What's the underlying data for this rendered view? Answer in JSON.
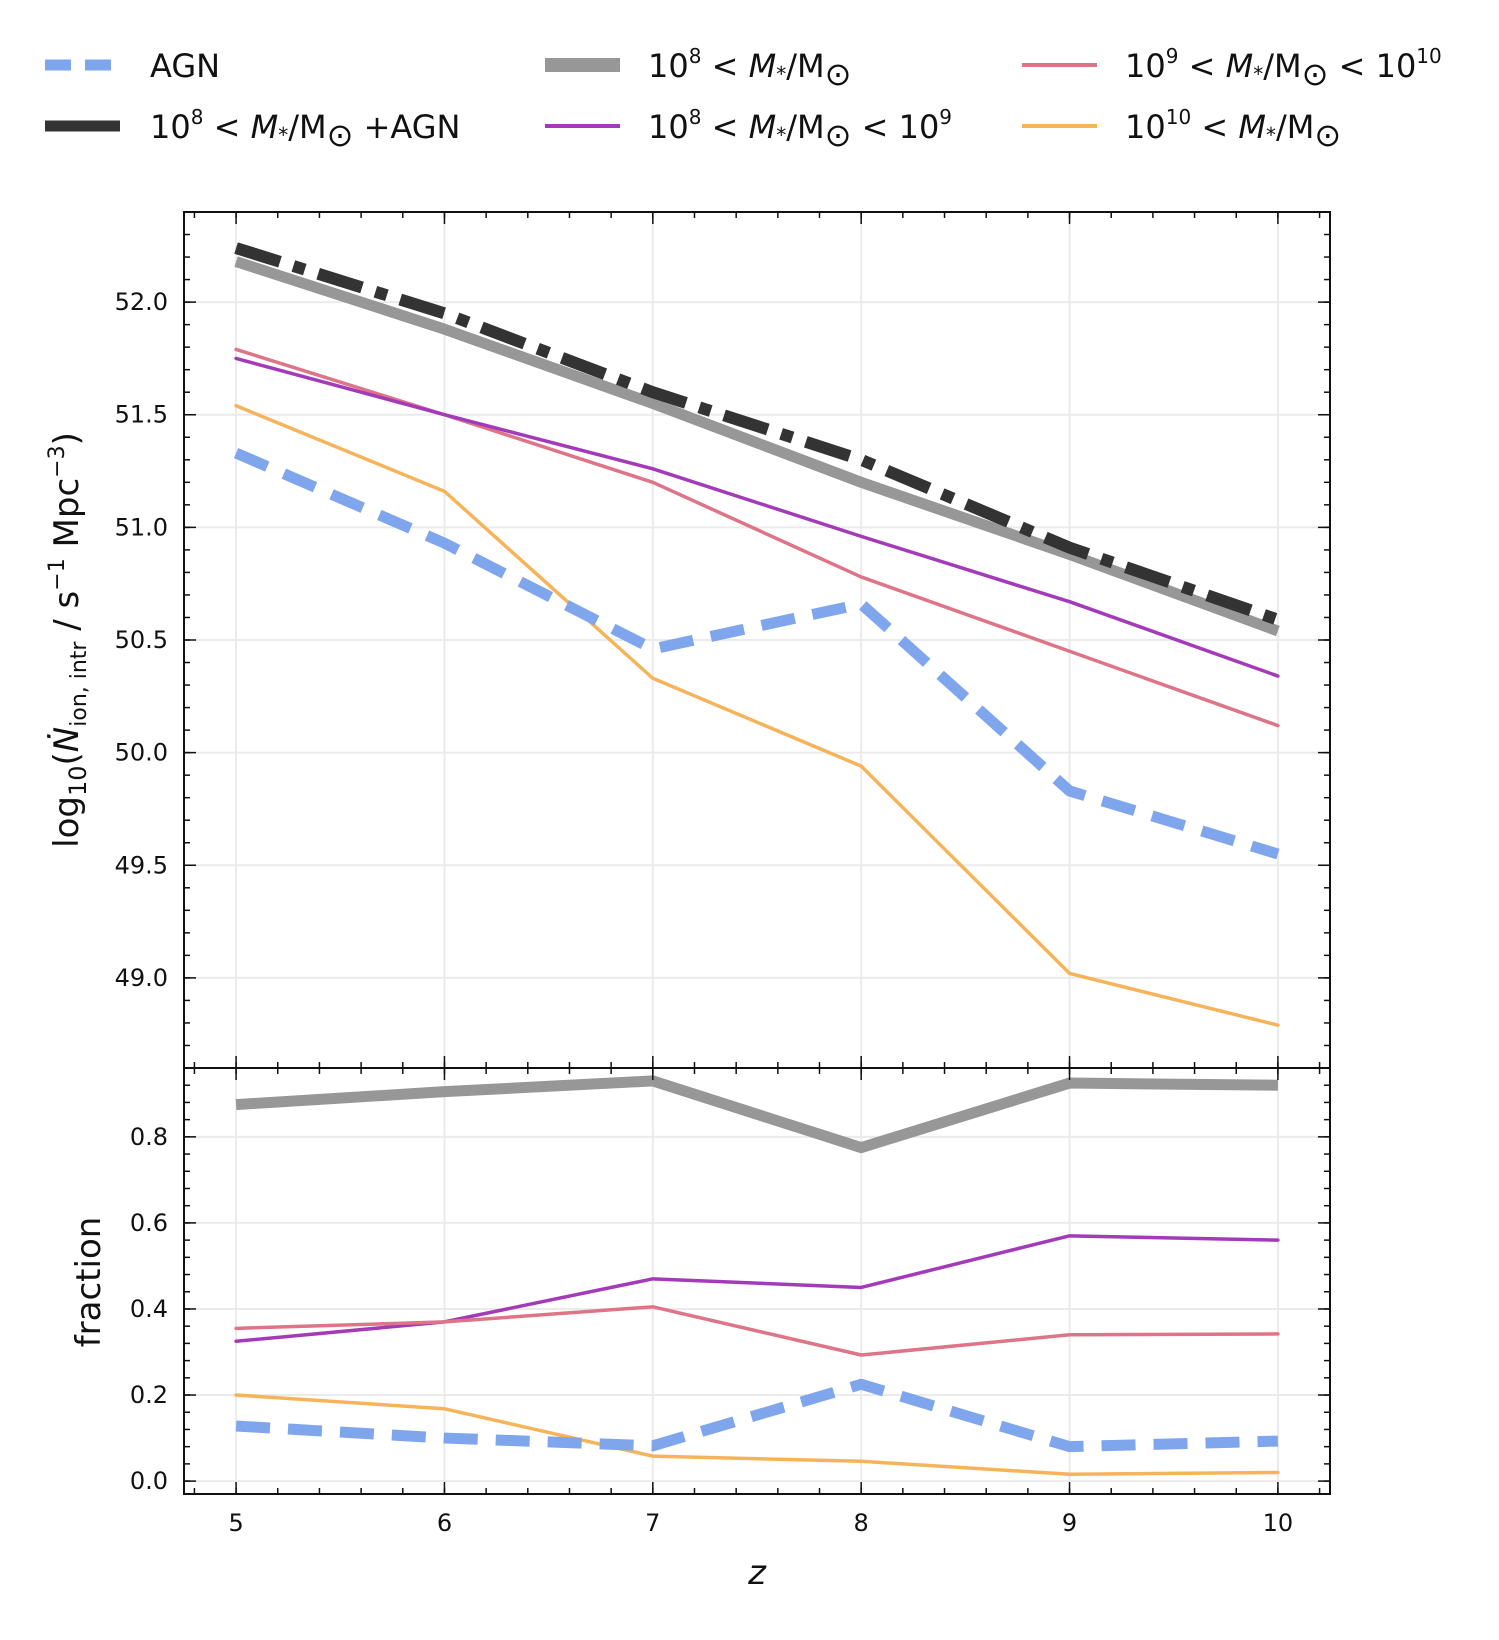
{
  "chart_data": {
    "type": "line",
    "x": [
      5,
      6,
      7,
      8,
      9,
      10
    ],
    "xlabel": "z",
    "xticks": [
      "5",
      "6",
      "7",
      "8",
      "9",
      "10"
    ],
    "legend": {
      "placement": "top",
      "entries": [
        {
          "id": "agn",
          "label": "AGN"
        },
        {
          "id": "all_agn",
          "label": "10^8 < M*/M⊙ +AGN"
        },
        {
          "id": "all",
          "label": "10^8 < M*/M⊙"
        },
        {
          "id": "low",
          "label": "10^8 < M*/M⊙ < 10^9"
        },
        {
          "id": "mid",
          "label": "10^9 < M*/M⊙ < 10^10"
        },
        {
          "id": "high",
          "label": "10^10 < M*/M⊙"
        }
      ]
    },
    "colors": {
      "agn": "#7fa6ec",
      "all_agn": "#333333",
      "all": "#979797",
      "low": "#a33bb8",
      "mid": "#dd7487",
      "high": "#f6b45a"
    },
    "panels": [
      {
        "id": "top",
        "ylabel": "log10(Ṅion,intr / s⁻¹ Mpc⁻³)",
        "ylim": [
          48.6,
          52.4
        ],
        "yticks": [
          "49.0",
          "49.5",
          "50.0",
          "50.5",
          "51.0",
          "51.5",
          "52.0"
        ],
        "series": [
          {
            "id": "all",
            "name": "10^8 < M*/M⊙",
            "values": [
              52.18,
              51.88,
              51.55,
              51.2,
              50.88,
              50.54
            ]
          },
          {
            "id": "all_agn",
            "name": "10^8 < M*/M⊙ +AGN",
            "values": [
              52.24,
              51.95,
              51.6,
              51.3,
              50.91,
              50.59
            ]
          },
          {
            "id": "mid",
            "name": "10^9 < M*/M⊙ < 10^10",
            "values": [
              51.79,
              51.5,
              51.2,
              50.78,
              50.45,
              50.12
            ]
          },
          {
            "id": "low",
            "name": "10^8 < M*/M⊙ < 10^9",
            "values": [
              51.75,
              51.5,
              51.26,
              50.96,
              50.67,
              50.34
            ]
          },
          {
            "id": "high",
            "name": "10^10 < M*/M⊙",
            "values": [
              51.54,
              51.16,
              50.33,
              49.94,
              49.02,
              48.79
            ]
          },
          {
            "id": "agn",
            "name": "AGN",
            "values": [
              51.33,
              50.93,
              50.46,
              50.66,
              49.83,
              49.55
            ]
          }
        ]
      },
      {
        "id": "bottom",
        "ylabel": "fraction",
        "ylim": [
          -0.03,
          0.96
        ],
        "yticks": [
          "0.0",
          "0.2",
          "0.4",
          "0.6",
          "0.8"
        ],
        "series": [
          {
            "id": "all",
            "name": "10^8 < M*/M⊙",
            "values": [
              0.875,
              0.905,
              0.93,
              0.775,
              0.925,
              0.92
            ]
          },
          {
            "id": "low",
            "name": "10^8 < M*/M⊙ < 10^9",
            "values": [
              0.325,
              0.37,
              0.47,
              0.45,
              0.57,
              0.56
            ]
          },
          {
            "id": "mid",
            "name": "10^9 < M*/M⊙ < 10^10",
            "values": [
              0.355,
              0.37,
              0.405,
              0.293,
              0.34,
              0.342
            ]
          },
          {
            "id": "high",
            "name": "10^10 < M*/M⊙",
            "values": [
              0.2,
              0.168,
              0.058,
              0.046,
              0.016,
              0.02
            ]
          },
          {
            "id": "agn",
            "name": "AGN",
            "values": [
              0.128,
              0.1,
              0.082,
              0.225,
              0.08,
              0.093
            ]
          }
        ]
      }
    ]
  }
}
